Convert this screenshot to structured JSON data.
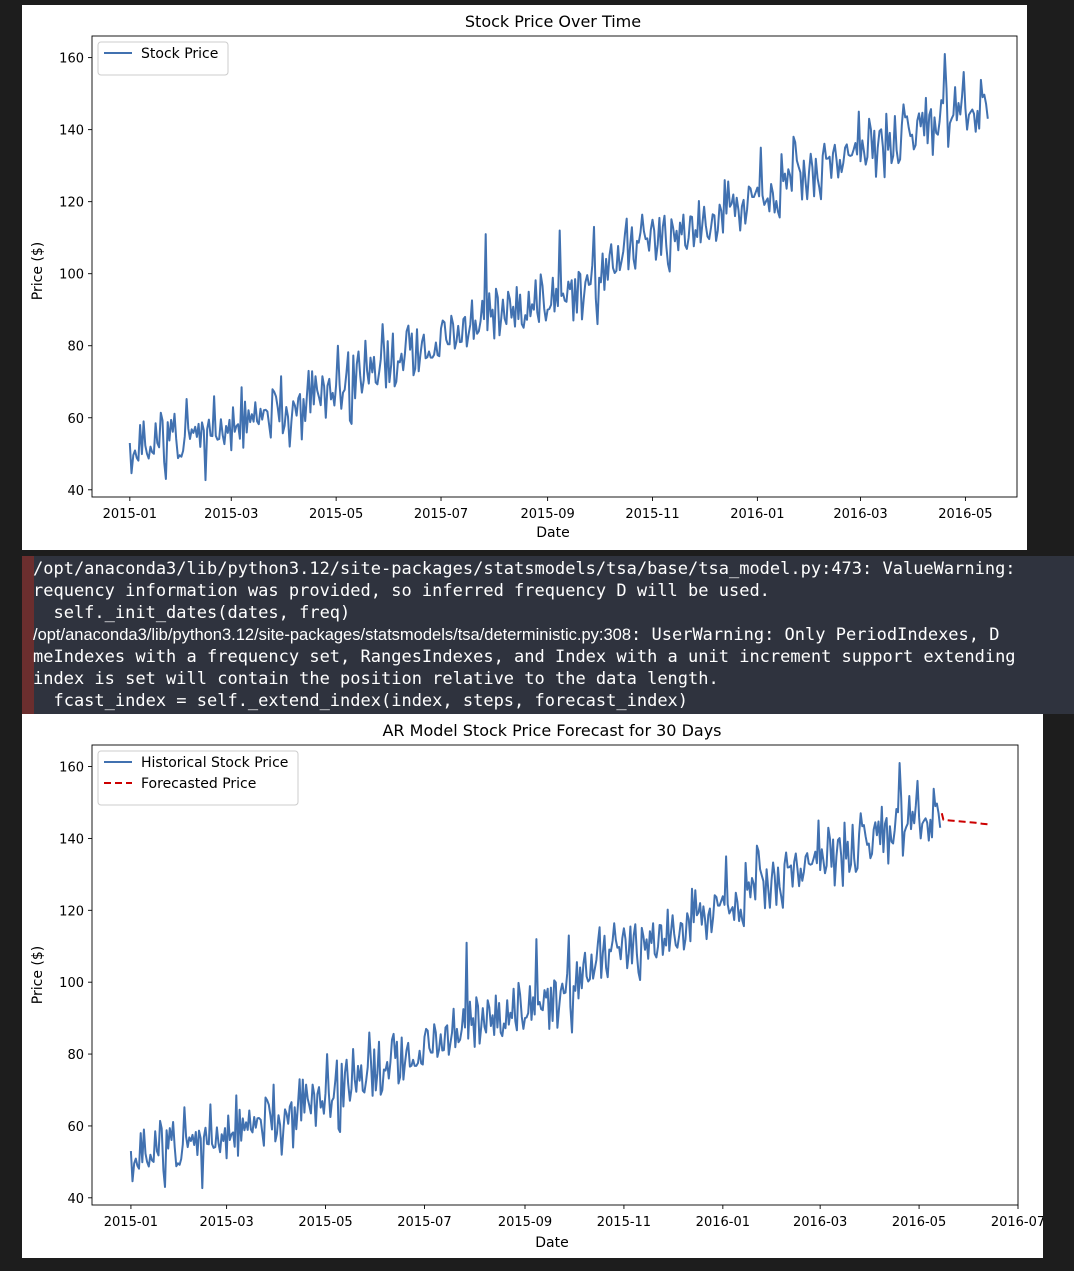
{
  "colors": {
    "historical": "#4171b0",
    "forecast": "#cc0000",
    "console_bg": "#2f333e",
    "page_bg": "#1d1d1d",
    "stderr_bar": "#6b2e2e"
  },
  "console": {
    "line1": "/opt/anaconda3/lib/python3.12/site-packages/statsmodels/tsa/base/tsa_model.py:473: ValueWarning: ",
    "line2": "requency information was provided, so inferred frequency D will be used.",
    "line3": "  self._init_dates(dates, freq)",
    "line4_path": "/opt/anaconda3/lib/python3.12/site-packages/statsmodels/tsa/deterministic.py:308",
    "line4_msg": ": UserWarning: Only PeriodIndexes, D",
    "line5": "meIndexes with a frequency set, RangesIndexes, and Index with a unit increment support extending",
    "line6": "index is set will contain the position relative to the data length.",
    "line7": "  fcast_index = self._extend_index(index, steps, forecast_index)"
  },
  "chart_data": [
    {
      "type": "line",
      "title": "Stock Price Over Time",
      "xlabel": "Date",
      "ylabel": "Price ($)",
      "xlim": [
        "2014-12-10",
        "2016-05-31"
      ],
      "ylim": [
        38,
        166
      ],
      "x_ticks": [
        "2015-01",
        "2015-03",
        "2015-05",
        "2015-07",
        "2015-09",
        "2015-11",
        "2016-01",
        "2016-03",
        "2016-05"
      ],
      "y_ticks": [
        40,
        60,
        80,
        100,
        120,
        140,
        160
      ],
      "legend": "upper-left",
      "grid": false,
      "series": [
        {
          "name": "Stock Price",
          "x_start": "2015-01-01",
          "x_step_days": 1,
          "points": 500,
          "trend": [
            [
              0,
              51
            ],
            [
              60,
              57
            ],
            [
              90,
              62
            ],
            [
              120,
              68
            ],
            [
              181,
              81
            ],
            [
              240,
              93
            ],
            [
              273,
              99
            ],
            [
              304,
              110
            ],
            [
              334,
              115
            ],
            [
              365,
              122
            ],
            [
              425,
              134
            ],
            [
              455,
              139
            ],
            [
              480,
              146
            ],
            [
              499,
              147
            ]
          ],
          "noise_amplitude": 6.5,
          "notable_points": [
            [
              0,
              53
            ],
            [
              6,
              58
            ],
            [
              8,
              59
            ],
            [
              21,
              43
            ],
            [
              49,
              66
            ],
            [
              71,
              61
            ],
            [
              93,
              52
            ],
            [
              121,
              80
            ],
            [
              147,
              86
            ],
            [
              207,
              111
            ],
            [
              242,
              87
            ],
            [
              250,
              112
            ],
            [
              258,
              87
            ],
            [
              270,
              113
            ],
            [
              272,
              86
            ],
            [
              304,
              115
            ],
            [
              346,
              126
            ],
            [
              367,
              135
            ],
            [
              386,
              138
            ],
            [
              424,
              145
            ],
            [
              430,
              143
            ],
            [
              450,
              147
            ],
            [
              467,
              133
            ],
            [
              474,
              161
            ],
            [
              485,
              156
            ],
            [
              496,
              149
            ],
            [
              499,
              143
            ]
          ],
          "color": "#4171b0",
          "style": "solid"
        }
      ]
    },
    {
      "type": "line",
      "title": "AR Model Stock Price Forecast for 30 Days",
      "xlabel": "Date",
      "ylabel": "Price ($)",
      "xlim": [
        "2014-12-08",
        "2016-07-01"
      ],
      "ylim": [
        38,
        166
      ],
      "x_ticks": [
        "2015-01",
        "2015-03",
        "2015-05",
        "2015-07",
        "2015-09",
        "2015-11",
        "2016-01",
        "2016-03",
        "2016-05",
        "2016-07"
      ],
      "y_ticks": [
        40,
        60,
        80,
        100,
        120,
        140,
        160
      ],
      "legend": "upper-left",
      "grid": false,
      "series": [
        {
          "name": "Historical Stock Price",
          "same_as": "Stock Price",
          "color": "#4171b0",
          "style": "solid"
        },
        {
          "name": "Forecasted Price",
          "x": [
            "2016-05-15",
            "2016-05-16",
            "2016-05-20",
            "2016-05-25",
            "2016-05-30",
            "2016-06-04",
            "2016-06-09",
            "2016-06-13"
          ],
          "y": [
            147,
            145.2,
            145,
            144.8,
            144.6,
            144.4,
            144.1,
            143.9
          ],
          "color": "#cc0000",
          "style": "dashed"
        }
      ]
    }
  ]
}
